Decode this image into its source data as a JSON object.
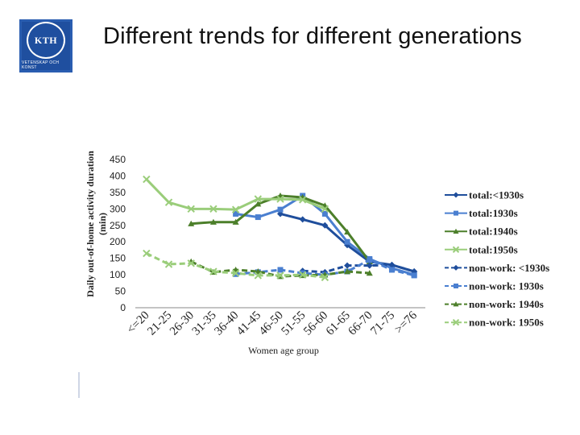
{
  "slide": {
    "title": "Different trends for different generations",
    "logo": {
      "main": "KTH",
      "sub": "VETENSKAP OCH KONST"
    }
  },
  "chart_data": {
    "type": "line",
    "title": "",
    "xlabel": "Women age group",
    "ylabel": "Daily out-of-home activity duration (min)",
    "ylim": [
      0,
      450
    ],
    "yticks": [
      0,
      50,
      100,
      150,
      200,
      250,
      300,
      350,
      400,
      450
    ],
    "categories": [
      "<=20",
      "21-25",
      "26-30",
      "31-35",
      "36-40",
      "41-45",
      "46-50",
      "51-55",
      "56-60",
      "61-65",
      "66-70",
      "71-75",
      ">=76"
    ],
    "legend_position": "right",
    "series": [
      {
        "name": "total:<1930s",
        "color": "#1f4e9c",
        "marker": "diamond",
        "dash": false,
        "values": [
          null,
          null,
          null,
          null,
          null,
          null,
          285,
          268,
          250,
          190,
          140,
          130,
          110
        ]
      },
      {
        "name": "total:1930s",
        "color": "#4a7fd0",
        "marker": "square",
        "dash": false,
        "values": [
          null,
          null,
          null,
          null,
          285,
          275,
          298,
          340,
          285,
          200,
          148,
          120,
          100
        ]
      },
      {
        "name": "total:1940s",
        "color": "#4c7f2a",
        "marker": "triangle",
        "dash": false,
        "values": [
          null,
          null,
          255,
          260,
          260,
          315,
          340,
          335,
          310,
          230,
          140,
          null,
          null
        ]
      },
      {
        "name": "total:1950s",
        "color": "#9acd7a",
        "marker": "x",
        "dash": false,
        "values": [
          390,
          320,
          300,
          300,
          298,
          330,
          330,
          328,
          300,
          null,
          null,
          null,
          null
        ]
      },
      {
        "name": "non-work: <1930s",
        "color": "#1f4e9c",
        "marker": "diamond",
        "dash": true,
        "values": [
          null,
          null,
          null,
          null,
          null,
          null,
          null,
          112,
          108,
          128,
          128,
          130,
          110
        ]
      },
      {
        "name": "non-work: 1930s",
        "color": "#4a7fd0",
        "marker": "square",
        "dash": true,
        "values": [
          null,
          null,
          null,
          null,
          102,
          108,
          115,
          105,
          100,
          110,
          145,
          115,
          98
        ]
      },
      {
        "name": "non-work: 1940s",
        "color": "#4c7f2a",
        "marker": "triangle",
        "dash": true,
        "values": [
          null,
          null,
          140,
          108,
          115,
          110,
          95,
          98,
          100,
          110,
          105,
          null,
          null
        ]
      },
      {
        "name": "non-work: 1950s",
        "color": "#9acd7a",
        "marker": "x",
        "dash": true,
        "values": [
          165,
          132,
          135,
          110,
          105,
          98,
          98,
          100,
          92,
          null,
          null,
          null,
          null
        ]
      }
    ]
  }
}
